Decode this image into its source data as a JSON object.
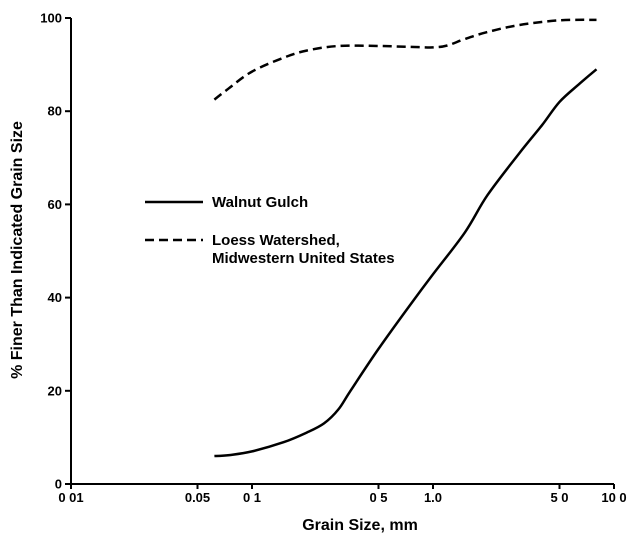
{
  "chart_data": {
    "type": "line",
    "title": "",
    "xlabel": "Grain Size, mm",
    "ylabel": "% Finer Than Indicated Grain Size",
    "x_scale": "log",
    "xlim": [
      0.01,
      10.0
    ],
    "ylim": [
      0,
      100
    ],
    "x_ticks": [
      {
        "value": 0.01,
        "label": "0 01"
      },
      {
        "value": 0.05,
        "label": "0.05"
      },
      {
        "value": 0.1,
        "label": "0 1"
      },
      {
        "value": 0.5,
        "label": "0 5"
      },
      {
        "value": 1.0,
        "label": "1.0"
      },
      {
        "value": 5.0,
        "label": "5 0"
      },
      {
        "value": 10.0,
        "label": "10 0"
      }
    ],
    "y_ticks": [
      {
        "value": 0,
        "label": "0"
      },
      {
        "value": 20,
        "label": "20"
      },
      {
        "value": 40,
        "label": "40"
      },
      {
        "value": 60,
        "label": "60"
      },
      {
        "value": 80,
        "label": "80"
      },
      {
        "value": 100,
        "label": "100"
      }
    ],
    "grid": false,
    "legend_position": "left-center",
    "series": [
      {
        "name": "Walnut Gulch",
        "style": "solid",
        "color": "#000000",
        "x": [
          0.062,
          0.075,
          0.1,
          0.15,
          0.2,
          0.25,
          0.3,
          0.35,
          0.5,
          0.75,
          1.0,
          1.5,
          2.0,
          3.0,
          4.0,
          5.0,
          6.5,
          8.0
        ],
        "y": [
          6,
          6.2,
          7,
          9,
          11,
          13,
          16,
          20,
          29,
          38.5,
          45,
          54,
          62,
          71,
          77,
          82,
          86,
          89
        ]
      },
      {
        "name": "Loess Watershed, Midwestern United States",
        "style": "dashed",
        "color": "#000000",
        "x": [
          0.062,
          0.075,
          0.1,
          0.15,
          0.2,
          0.3,
          0.5,
          0.75,
          1.0,
          1.2,
          1.5,
          2.0,
          3.0,
          5.0,
          8.0
        ],
        "y": [
          82.5,
          85,
          88.5,
          91.5,
          93,
          94,
          94,
          93.8,
          93.7,
          94.1,
          95.5,
          97,
          98.5,
          99.5,
          99.6
        ]
      }
    ],
    "legend_lines": [
      [
        "Walnut Gulch"
      ],
      [
        "Loess Watershed,",
        "Midwestern United States"
      ]
    ]
  }
}
